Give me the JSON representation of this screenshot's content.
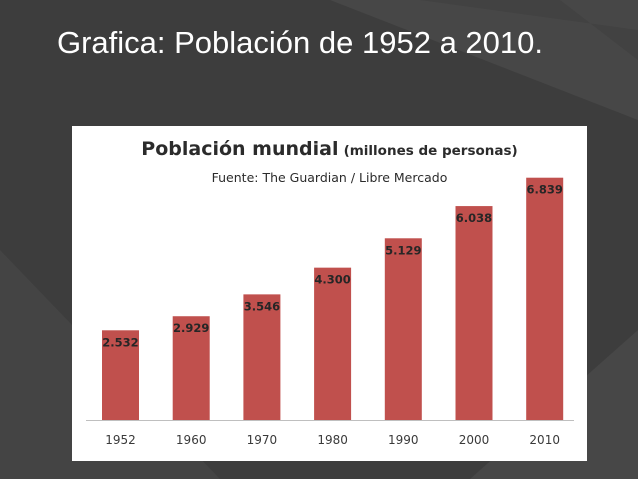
{
  "slide": {
    "title": "Grafica: Población de 1952 a 2010."
  },
  "colors": {
    "background": "#3d3d3d",
    "bar": "#c0504d",
    "card": "#ffffff"
  },
  "chart_data": {
    "type": "bar",
    "title": "Población mundial",
    "subtitle": "(millones de personas)",
    "source": "Fuente: The Guardian / Libre Mercado",
    "categories": [
      "1952",
      "1960",
      "1970",
      "1980",
      "1990",
      "2000",
      "2010"
    ],
    "values": [
      2532,
      2929,
      3546,
      4300,
      5129,
      6038,
      6839
    ],
    "value_labels": [
      "2.532",
      "2.929",
      "3.546",
      "4.300",
      "5.129",
      "6.038",
      "6.839"
    ],
    "ylim": [
      0,
      7000
    ],
    "grid": false,
    "legend": "none"
  }
}
